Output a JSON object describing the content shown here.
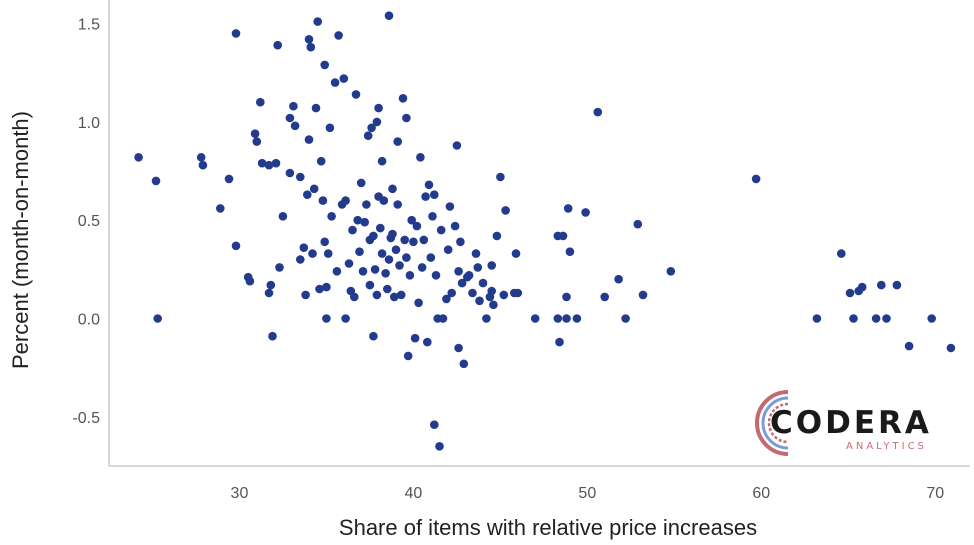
{
  "chart_data": {
    "type": "scatter",
    "title": "",
    "xlabel": "Share of items with relative price increases",
    "ylabel": "Percent (month-on-month)",
    "xlim": [
      22.5,
      72
    ],
    "ylim": [
      -0.75,
      1.62
    ],
    "xticks": [
      30,
      40,
      50,
      60,
      70
    ],
    "yticks": [
      -0.5,
      0.0,
      0.5,
      1.0,
      1.5
    ],
    "ytick_labels": [
      "-0.5",
      "0.0",
      "0.5",
      "1.0",
      "1.5"
    ],
    "grid": false,
    "point_color": "#233b8c",
    "points": [
      [
        24.2,
        0.82
      ],
      [
        25.2,
        0.7
      ],
      [
        25.3,
        0.0
      ],
      [
        27.8,
        0.82
      ],
      [
        27.9,
        0.78
      ],
      [
        28.9,
        0.56
      ],
      [
        29.4,
        0.71
      ],
      [
        29.8,
        1.45
      ],
      [
        29.8,
        0.37
      ],
      [
        30.5,
        0.21
      ],
      [
        30.6,
        0.19
      ],
      [
        30.9,
        0.94
      ],
      [
        31.0,
        0.9
      ],
      [
        31.2,
        1.1
      ],
      [
        31.3,
        0.79
      ],
      [
        31.7,
        0.78
      ],
      [
        31.7,
        0.13
      ],
      [
        31.8,
        0.17
      ],
      [
        31.9,
        -0.09
      ],
      [
        32.1,
        0.79
      ],
      [
        32.2,
        1.39
      ],
      [
        32.3,
        0.26
      ],
      [
        32.5,
        0.52
      ],
      [
        32.9,
        1.02
      ],
      [
        32.9,
        0.74
      ],
      [
        33.1,
        1.08
      ],
      [
        33.2,
        0.98
      ],
      [
        33.5,
        0.72
      ],
      [
        33.5,
        0.3
      ],
      [
        33.7,
        0.36
      ],
      [
        33.8,
        0.12
      ],
      [
        33.9,
        0.63
      ],
      [
        34.0,
        1.42
      ],
      [
        34.0,
        0.91
      ],
      [
        34.1,
        1.38
      ],
      [
        34.2,
        0.33
      ],
      [
        34.3,
        0.66
      ],
      [
        34.4,
        1.07
      ],
      [
        34.5,
        1.51
      ],
      [
        34.6,
        0.15
      ],
      [
        34.7,
        0.8
      ],
      [
        34.8,
        0.6
      ],
      [
        34.9,
        1.29
      ],
      [
        34.9,
        0.39
      ],
      [
        35.0,
        0.16
      ],
      [
        35.0,
        0.0
      ],
      [
        35.1,
        0.33
      ],
      [
        35.2,
        0.97
      ],
      [
        35.3,
        0.52
      ],
      [
        35.5,
        1.2
      ],
      [
        35.6,
        0.24
      ],
      [
        35.7,
        1.44
      ],
      [
        35.9,
        0.58
      ],
      [
        36.0,
        1.22
      ],
      [
        36.1,
        0.6
      ],
      [
        36.1,
        0.0
      ],
      [
        36.3,
        0.28
      ],
      [
        36.4,
        0.14
      ],
      [
        36.5,
        0.45
      ],
      [
        36.6,
        0.11
      ],
      [
        36.7,
        1.14
      ],
      [
        36.8,
        0.5
      ],
      [
        36.9,
        0.34
      ],
      [
        37.0,
        0.69
      ],
      [
        37.1,
        0.24
      ],
      [
        37.2,
        0.49
      ],
      [
        37.3,
        0.58
      ],
      [
        37.4,
        0.93
      ],
      [
        37.5,
        0.4
      ],
      [
        37.5,
        0.17
      ],
      [
        37.6,
        0.97
      ],
      [
        37.7,
        -0.09
      ],
      [
        37.7,
        0.42
      ],
      [
        37.8,
        0.25
      ],
      [
        37.9,
        1.0
      ],
      [
        37.9,
        0.12
      ],
      [
        38.0,
        1.07
      ],
      [
        38.0,
        0.62
      ],
      [
        38.1,
        0.46
      ],
      [
        38.2,
        0.33
      ],
      [
        38.2,
        0.8
      ],
      [
        38.3,
        0.6
      ],
      [
        38.4,
        0.23
      ],
      [
        38.5,
        0.15
      ],
      [
        38.6,
        1.54
      ],
      [
        38.6,
        0.3
      ],
      [
        38.7,
        0.41
      ],
      [
        38.8,
        0.66
      ],
      [
        38.8,
        0.43
      ],
      [
        38.9,
        0.11
      ],
      [
        39.0,
        0.35
      ],
      [
        39.1,
        0.58
      ],
      [
        39.1,
        0.9
      ],
      [
        39.2,
        0.27
      ],
      [
        39.3,
        0.12
      ],
      [
        39.4,
        1.12
      ],
      [
        39.5,
        0.4
      ],
      [
        39.6,
        1.02
      ],
      [
        39.6,
        0.31
      ],
      [
        39.7,
        -0.19
      ],
      [
        39.8,
        0.22
      ],
      [
        39.9,
        0.5
      ],
      [
        40.0,
        0.39
      ],
      [
        40.1,
        -0.1
      ],
      [
        40.2,
        0.47
      ],
      [
        40.3,
        0.08
      ],
      [
        40.4,
        0.82
      ],
      [
        40.5,
        0.26
      ],
      [
        40.6,
        0.4
      ],
      [
        40.7,
        0.62
      ],
      [
        40.8,
        -0.12
      ],
      [
        40.9,
        0.68
      ],
      [
        41.0,
        0.31
      ],
      [
        41.1,
        0.52
      ],
      [
        41.2,
        -0.54
      ],
      [
        41.2,
        0.63
      ],
      [
        41.3,
        0.22
      ],
      [
        41.4,
        0.0
      ],
      [
        41.5,
        -0.65
      ],
      [
        41.6,
        0.45
      ],
      [
        41.7,
        0.0
      ],
      [
        41.9,
        0.1
      ],
      [
        42.0,
        0.35
      ],
      [
        42.1,
        0.57
      ],
      [
        42.2,
        0.13
      ],
      [
        42.4,
        0.47
      ],
      [
        42.5,
        0.88
      ],
      [
        42.6,
        0.24
      ],
      [
        42.6,
        -0.15
      ],
      [
        42.7,
        0.39
      ],
      [
        42.8,
        0.18
      ],
      [
        42.9,
        -0.23
      ],
      [
        43.1,
        0.21
      ],
      [
        43.2,
        0.22
      ],
      [
        43.4,
        0.13
      ],
      [
        43.6,
        0.33
      ],
      [
        43.7,
        0.26
      ],
      [
        43.8,
        0.09
      ],
      [
        44.0,
        0.18
      ],
      [
        44.2,
        0.0
      ],
      [
        44.4,
        0.11
      ],
      [
        44.5,
        0.27
      ],
      [
        44.5,
        0.14
      ],
      [
        44.6,
        0.07
      ],
      [
        44.8,
        0.42
      ],
      [
        45.0,
        0.72
      ],
      [
        45.2,
        0.12
      ],
      [
        45.3,
        0.55
      ],
      [
        45.8,
        0.13
      ],
      [
        45.9,
        0.33
      ],
      [
        46.0,
        0.13
      ],
      [
        47.0,
        0.0
      ],
      [
        48.3,
        0.42
      ],
      [
        48.3,
        0.0
      ],
      [
        48.4,
        -0.12
      ],
      [
        48.6,
        0.42
      ],
      [
        48.8,
        0.0
      ],
      [
        48.8,
        0.11
      ],
      [
        48.9,
        0.56
      ],
      [
        49.0,
        0.34
      ],
      [
        49.4,
        0.0
      ],
      [
        49.9,
        0.54
      ],
      [
        50.6,
        1.05
      ],
      [
        51.0,
        0.11
      ],
      [
        51.8,
        0.2
      ],
      [
        52.2,
        0.0
      ],
      [
        52.9,
        0.48
      ],
      [
        53.2,
        0.12
      ],
      [
        54.8,
        0.24
      ],
      [
        59.7,
        0.71
      ],
      [
        63.2,
        0.0
      ],
      [
        64.6,
        0.33
      ],
      [
        65.1,
        0.13
      ],
      [
        65.3,
        0.0
      ],
      [
        65.6,
        0.14
      ],
      [
        65.8,
        0.16
      ],
      [
        66.6,
        0.0
      ],
      [
        66.9,
        0.17
      ],
      [
        67.2,
        0.0
      ],
      [
        67.8,
        0.17
      ],
      [
        68.5,
        -0.14
      ],
      [
        69.8,
        0.0
      ],
      [
        70.9,
        -0.15
      ]
    ]
  },
  "logo": {
    "name": "CODERA",
    "tagline": "ANALYTICS"
  }
}
